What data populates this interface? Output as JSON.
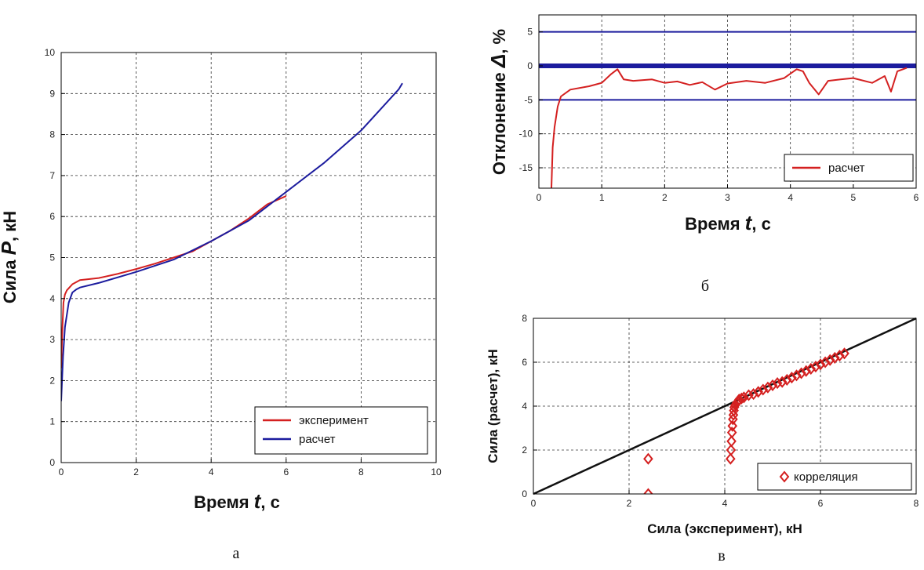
{
  "captions": [
    "а",
    "б",
    "в"
  ],
  "chart_data": [
    {
      "id": "a",
      "type": "line",
      "caption": "а",
      "title": "",
      "xlabel_parts": [
        "Время ",
        "t",
        ", с"
      ],
      "ylabel_parts": [
        "Сила ",
        "P",
        ", кН"
      ],
      "xlim": [
        0,
        10
      ],
      "ylim": [
        0,
        10
      ],
      "xticks": [
        0,
        2,
        4,
        6,
        8,
        10
      ],
      "yticks": [
        0,
        1,
        2,
        3,
        4,
        5,
        6,
        7,
        8,
        9,
        10
      ],
      "grid": true,
      "legend_position": "bottom-right",
      "series": [
        {
          "name": "эксперимент",
          "color": "#d42020",
          "x": [
            0,
            0.03,
            0.06,
            0.1,
            0.15,
            0.2,
            0.3,
            0.5,
            1,
            1.5,
            2,
            2.5,
            3,
            3.5,
            4,
            4.5,
            5,
            5.5,
            6
          ],
          "y": [
            2.3,
            3.2,
            3.9,
            4.1,
            4.2,
            4.25,
            4.35,
            4.45,
            4.5,
            4.6,
            4.72,
            4.85,
            5.0,
            5.15,
            5.4,
            5.65,
            5.95,
            6.3,
            6.5
          ]
        },
        {
          "name": "расчет",
          "color": "#1c1c9e",
          "x": [
            0,
            0.05,
            0.1,
            0.2,
            0.3,
            0.4,
            0.5,
            1,
            2,
            3,
            4,
            5,
            6,
            7,
            8,
            9,
            9.1
          ],
          "y": [
            1.5,
            2.6,
            3.3,
            3.9,
            4.15,
            4.22,
            4.27,
            4.38,
            4.65,
            4.95,
            5.4,
            5.9,
            6.6,
            7.3,
            8.1,
            9.1,
            9.25
          ]
        }
      ]
    },
    {
      "id": "b",
      "type": "line",
      "caption": "б",
      "title": "",
      "xlabel_parts": [
        "Время ",
        "t",
        ", с"
      ],
      "ylabel_parts": [
        "Отклонение ",
        "Δ",
        ", %"
      ],
      "xlim": [
        0,
        6
      ],
      "ylim": [
        -18,
        7.5
      ],
      "xticks": [
        0,
        1,
        2,
        3,
        4,
        5,
        6
      ],
      "yticks": [
        -15,
        -10,
        -5,
        0,
        5
      ],
      "grid": true,
      "legend_position": "bottom-right",
      "reference_lines": [
        {
          "y": 5,
          "color": "#1c1c9e"
        },
        {
          "y": -5,
          "color": "#1c1c9e"
        },
        {
          "y": 0,
          "color": "#1c1c9e",
          "thick": true
        }
      ],
      "series": [
        {
          "name": "расчет",
          "color": "#d42020",
          "x": [
            0.2,
            0.22,
            0.25,
            0.3,
            0.35,
            0.5,
            0.8,
            1.0,
            1.15,
            1.25,
            1.35,
            1.5,
            1.8,
            2.0,
            2.2,
            2.4,
            2.6,
            2.8,
            3.0,
            3.3,
            3.6,
            3.9,
            4.1,
            4.2,
            4.3,
            4.45,
            4.6,
            4.8,
            5.0,
            5.3,
            5.5,
            5.6,
            5.7,
            5.85
          ],
          "y": [
            -18,
            -12,
            -9,
            -6,
            -4.5,
            -3.5,
            -3,
            -2.5,
            -1.2,
            -0.5,
            -2,
            -2.2,
            -2,
            -2.5,
            -2.3,
            -2.8,
            -2.4,
            -3.5,
            -2.6,
            -2.2,
            -2.5,
            -1.8,
            -0.5,
            -0.8,
            -2.5,
            -4.2,
            -2.2,
            -2,
            -1.8,
            -2.5,
            -1.5,
            -3.8,
            -0.8,
            -0.3
          ]
        }
      ]
    },
    {
      "id": "c",
      "type": "scatter",
      "caption": "в",
      "title": "",
      "xlabel": "Сила (эксперимент), кН",
      "ylabel": "Сила (расчет), кН",
      "xlim": [
        0,
        8
      ],
      "ylim": [
        0,
        8
      ],
      "xticks": [
        0,
        2,
        4,
        6,
        8
      ],
      "yticks": [
        0,
        2,
        4,
        6,
        8
      ],
      "grid": true,
      "legend_position": "bottom-right",
      "reference_lines": [
        {
          "x1": 0,
          "y1": 0,
          "x2": 8,
          "y2": 8,
          "color": "#111111"
        }
      ],
      "series": [
        {
          "name": "корреляция",
          "color": "#d42020",
          "marker": "diamond",
          "x": [
            2.4,
            2.4,
            4.12,
            4.13,
            4.14,
            4.15,
            4.16,
            4.17,
            4.18,
            4.19,
            4.2,
            4.22,
            4.25,
            4.28,
            4.3,
            4.35,
            4.4,
            4.5,
            4.6,
            4.7,
            4.8,
            4.9,
            5.0,
            5.1,
            5.2,
            5.3,
            5.4,
            5.5,
            5.6,
            5.7,
            5.8,
            5.9,
            6.0,
            6.1,
            6.2,
            6.3,
            6.4,
            6.5
          ],
          "y": [
            0,
            1.6,
            1.6,
            2.0,
            2.4,
            2.8,
            3.1,
            3.4,
            3.6,
            3.8,
            3.95,
            4.05,
            4.15,
            4.22,
            4.3,
            4.35,
            4.4,
            4.5,
            4.55,
            4.65,
            4.75,
            4.85,
            4.95,
            5.05,
            5.1,
            5.2,
            5.3,
            5.4,
            5.5,
            5.6,
            5.7,
            5.8,
            5.9,
            6.0,
            6.1,
            6.2,
            6.3,
            6.4
          ]
        }
      ]
    }
  ]
}
